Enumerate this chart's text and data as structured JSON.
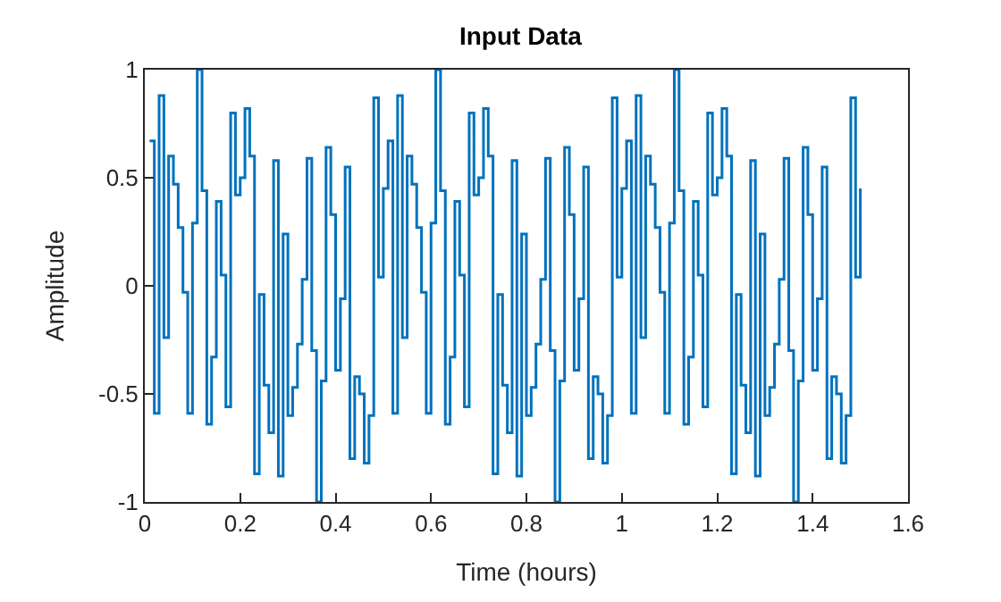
{
  "chart_data": {
    "type": "step",
    "title": "Input Data",
    "xlabel": "Time (hours)",
    "ylabel": "Amplitude",
    "x": [
      0.01,
      0.02,
      0.03,
      0.04,
      0.05,
      0.06,
      0.07,
      0.08,
      0.09,
      0.1,
      0.11,
      0.12,
      0.13,
      0.14,
      0.15,
      0.16,
      0.17,
      0.18,
      0.19,
      0.2,
      0.21,
      0.22,
      0.23,
      0.24,
      0.25,
      0.26,
      0.27,
      0.28,
      0.29,
      0.3,
      0.31,
      0.32,
      0.33,
      0.34,
      0.35,
      0.36,
      0.37,
      0.38,
      0.39,
      0.4,
      0.41,
      0.42,
      0.43,
      0.44,
      0.45,
      0.46,
      0.47,
      0.48,
      0.49,
      0.5,
      0.51,
      0.52,
      0.53,
      0.54,
      0.55,
      0.56,
      0.57,
      0.58,
      0.59,
      0.6,
      0.61,
      0.62,
      0.63,
      0.64,
      0.65,
      0.66,
      0.67,
      0.68,
      0.69,
      0.7,
      0.71,
      0.72,
      0.73,
      0.74,
      0.75,
      0.76,
      0.77,
      0.78,
      0.79,
      0.8,
      0.81,
      0.82,
      0.83,
      0.84,
      0.85,
      0.86,
      0.87,
      0.88,
      0.89,
      0.9,
      0.91,
      0.92,
      0.93,
      0.94,
      0.95,
      0.96,
      0.97,
      0.98,
      0.99,
      1.0,
      1.01,
      1.02,
      1.03,
      1.04,
      1.05,
      1.06,
      1.07,
      1.08,
      1.09,
      1.1,
      1.11,
      1.12,
      1.13,
      1.14,
      1.15,
      1.16,
      1.17,
      1.18,
      1.19,
      1.2,
      1.21,
      1.22,
      1.23,
      1.24,
      1.25,
      1.26,
      1.27,
      1.28,
      1.29,
      1.3,
      1.31,
      1.32,
      1.33,
      1.34,
      1.35,
      1.36,
      1.37,
      1.38,
      1.39,
      1.4,
      1.41,
      1.42,
      1.43,
      1.44,
      1.45,
      1.46,
      1.47,
      1.48,
      1.49,
      1.5
    ],
    "series": [
      {
        "color": "#0072bd",
        "values": [
          0.67,
          -0.59,
          0.88,
          -0.24,
          0.6,
          0.47,
          0.27,
          -0.03,
          -0.59,
          0.29,
          1,
          0.44,
          -0.64,
          -0.33,
          0.39,
          0.05,
          -0.56,
          0.8,
          0.42,
          0.5,
          0.82,
          0.6,
          -0.87,
          -0.04,
          -0.46,
          -0.68,
          0.58,
          -0.88,
          0.24,
          -0.6,
          -0.47,
          -0.27,
          0.03,
          0.59,
          -0.3,
          -1,
          -0.44,
          0.64,
          0.33,
          -0.39,
          -0.06,
          0.55,
          -0.8,
          -0.42,
          -0.5,
          -0.82,
          -0.6,
          0.87,
          0.04,
          0.45,
          0.67,
          -0.59,
          0.88,
          -0.24,
          0.6,
          0.47,
          0.27,
          -0.03,
          -0.59,
          0.29,
          1,
          0.44,
          -0.64,
          -0.33,
          0.39,
          0.05,
          -0.56,
          0.8,
          0.42,
          0.5,
          0.82,
          0.6,
          -0.87,
          -0.04,
          -0.46,
          -0.68,
          0.58,
          -0.88,
          0.24,
          -0.6,
          -0.47,
          -0.27,
          0.03,
          0.59,
          -0.3,
          -1,
          -0.44,
          0.64,
          0.33,
          -0.39,
          -0.06,
          0.55,
          -0.8,
          -0.42,
          -0.5,
          -0.82,
          -0.6,
          0.87,
          0.04,
          0.45,
          0.67,
          -0.59,
          0.88,
          -0.24,
          0.6,
          0.47,
          0.27,
          -0.03,
          -0.59,
          0.29,
          1,
          0.44,
          -0.64,
          -0.33,
          0.39,
          0.05,
          -0.56,
          0.8,
          0.42,
          0.5,
          0.82,
          0.6,
          -0.87,
          -0.04,
          -0.46,
          -0.68,
          0.58,
          -0.88,
          0.24,
          -0.6,
          -0.47,
          -0.27,
          0.03,
          0.59,
          -0.3,
          -1,
          -0.44,
          0.64,
          0.33,
          -0.39,
          -0.06,
          0.55,
          -0.8,
          -0.42,
          -0.5,
          -0.82,
          -0.6,
          0.87,
          0.04,
          0.45
        ]
      }
    ],
    "xlim": [
      0,
      1.6
    ],
    "xticks": [
      0,
      0.2,
      0.4,
      0.6,
      0.8,
      1,
      1.2,
      1.4,
      1.6
    ],
    "ylim": [
      -1,
      1
    ],
    "yticks": [
      -1,
      -0.5,
      0,
      0.5,
      1
    ]
  }
}
